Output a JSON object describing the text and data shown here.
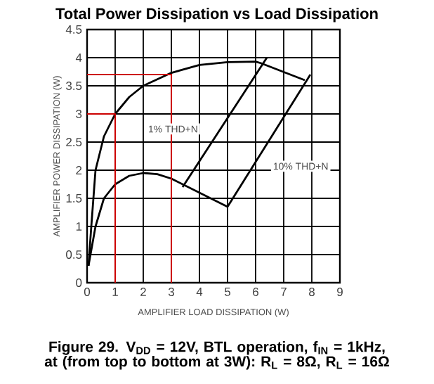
{
  "chart_data": {
    "type": "line",
    "title": "Total Power Dissipation vs Load Dissipation",
    "xlabel": "AMPLIFIER LOAD DISSIPATION (W)",
    "ylabel": "AMPLIFIER POWER DISSIPATION (W)",
    "xlim": [
      0,
      9
    ],
    "ylim": [
      0,
      4.5
    ],
    "xticks": [
      0,
      1,
      2,
      3,
      4,
      5,
      6,
      7,
      8,
      9
    ],
    "yticks": [
      0,
      0.5,
      1,
      1.5,
      2,
      2.5,
      3,
      3.5,
      4,
      4.5
    ],
    "grid": true,
    "series": [
      {
        "color": "#000000",
        "x": [
          0.05,
          0.15,
          0.3,
          0.6,
          1,
          1.5,
          2,
          3,
          4,
          5,
          6,
          6.2,
          7.75
        ],
        "values": [
          0.3,
          1,
          2,
          2.6,
          3,
          3.3,
          3.5,
          3.73,
          3.87,
          3.92,
          3.93,
          3.9,
          3.6
        ]
      },
      {
        "color": "#000000",
        "x": [
          0.05,
          0.3,
          0.6,
          1,
          1.5,
          2,
          2.5,
          3,
          4,
          5
        ],
        "values": [
          0.3,
          1.0,
          1.5,
          1.75,
          1.9,
          1.95,
          1.93,
          1.85,
          1.6,
          1.35
        ]
      },
      {
        "color": "#000000",
        "x": [
          3.4,
          6.4
        ],
        "values": [
          1.7,
          4.0
        ]
      },
      {
        "color": "#000000",
        "x": [
          5,
          7.95
        ],
        "values": [
          1.35,
          3.7
        ]
      },
      {
        "color": "#cc0000",
        "x": [
          0,
          1,
          1
        ],
        "values": [
          3,
          3,
          0
        ]
      },
      {
        "color": "#cc0000",
        "x": [
          0,
          3,
          3
        ],
        "values": [
          3.7,
          3.7,
          0
        ]
      }
    ],
    "annotations": [
      "1% THD+N",
      "10% THD+N",
      "Figure 29. V$_{DD}$ = 12V, BTL operation, f$_{IN}$ = 1kHz, at (from top to bottom at 3W): R$_{L}$ = 8Ω, R$_{L}$ = 16Ω"
    ]
  }
}
